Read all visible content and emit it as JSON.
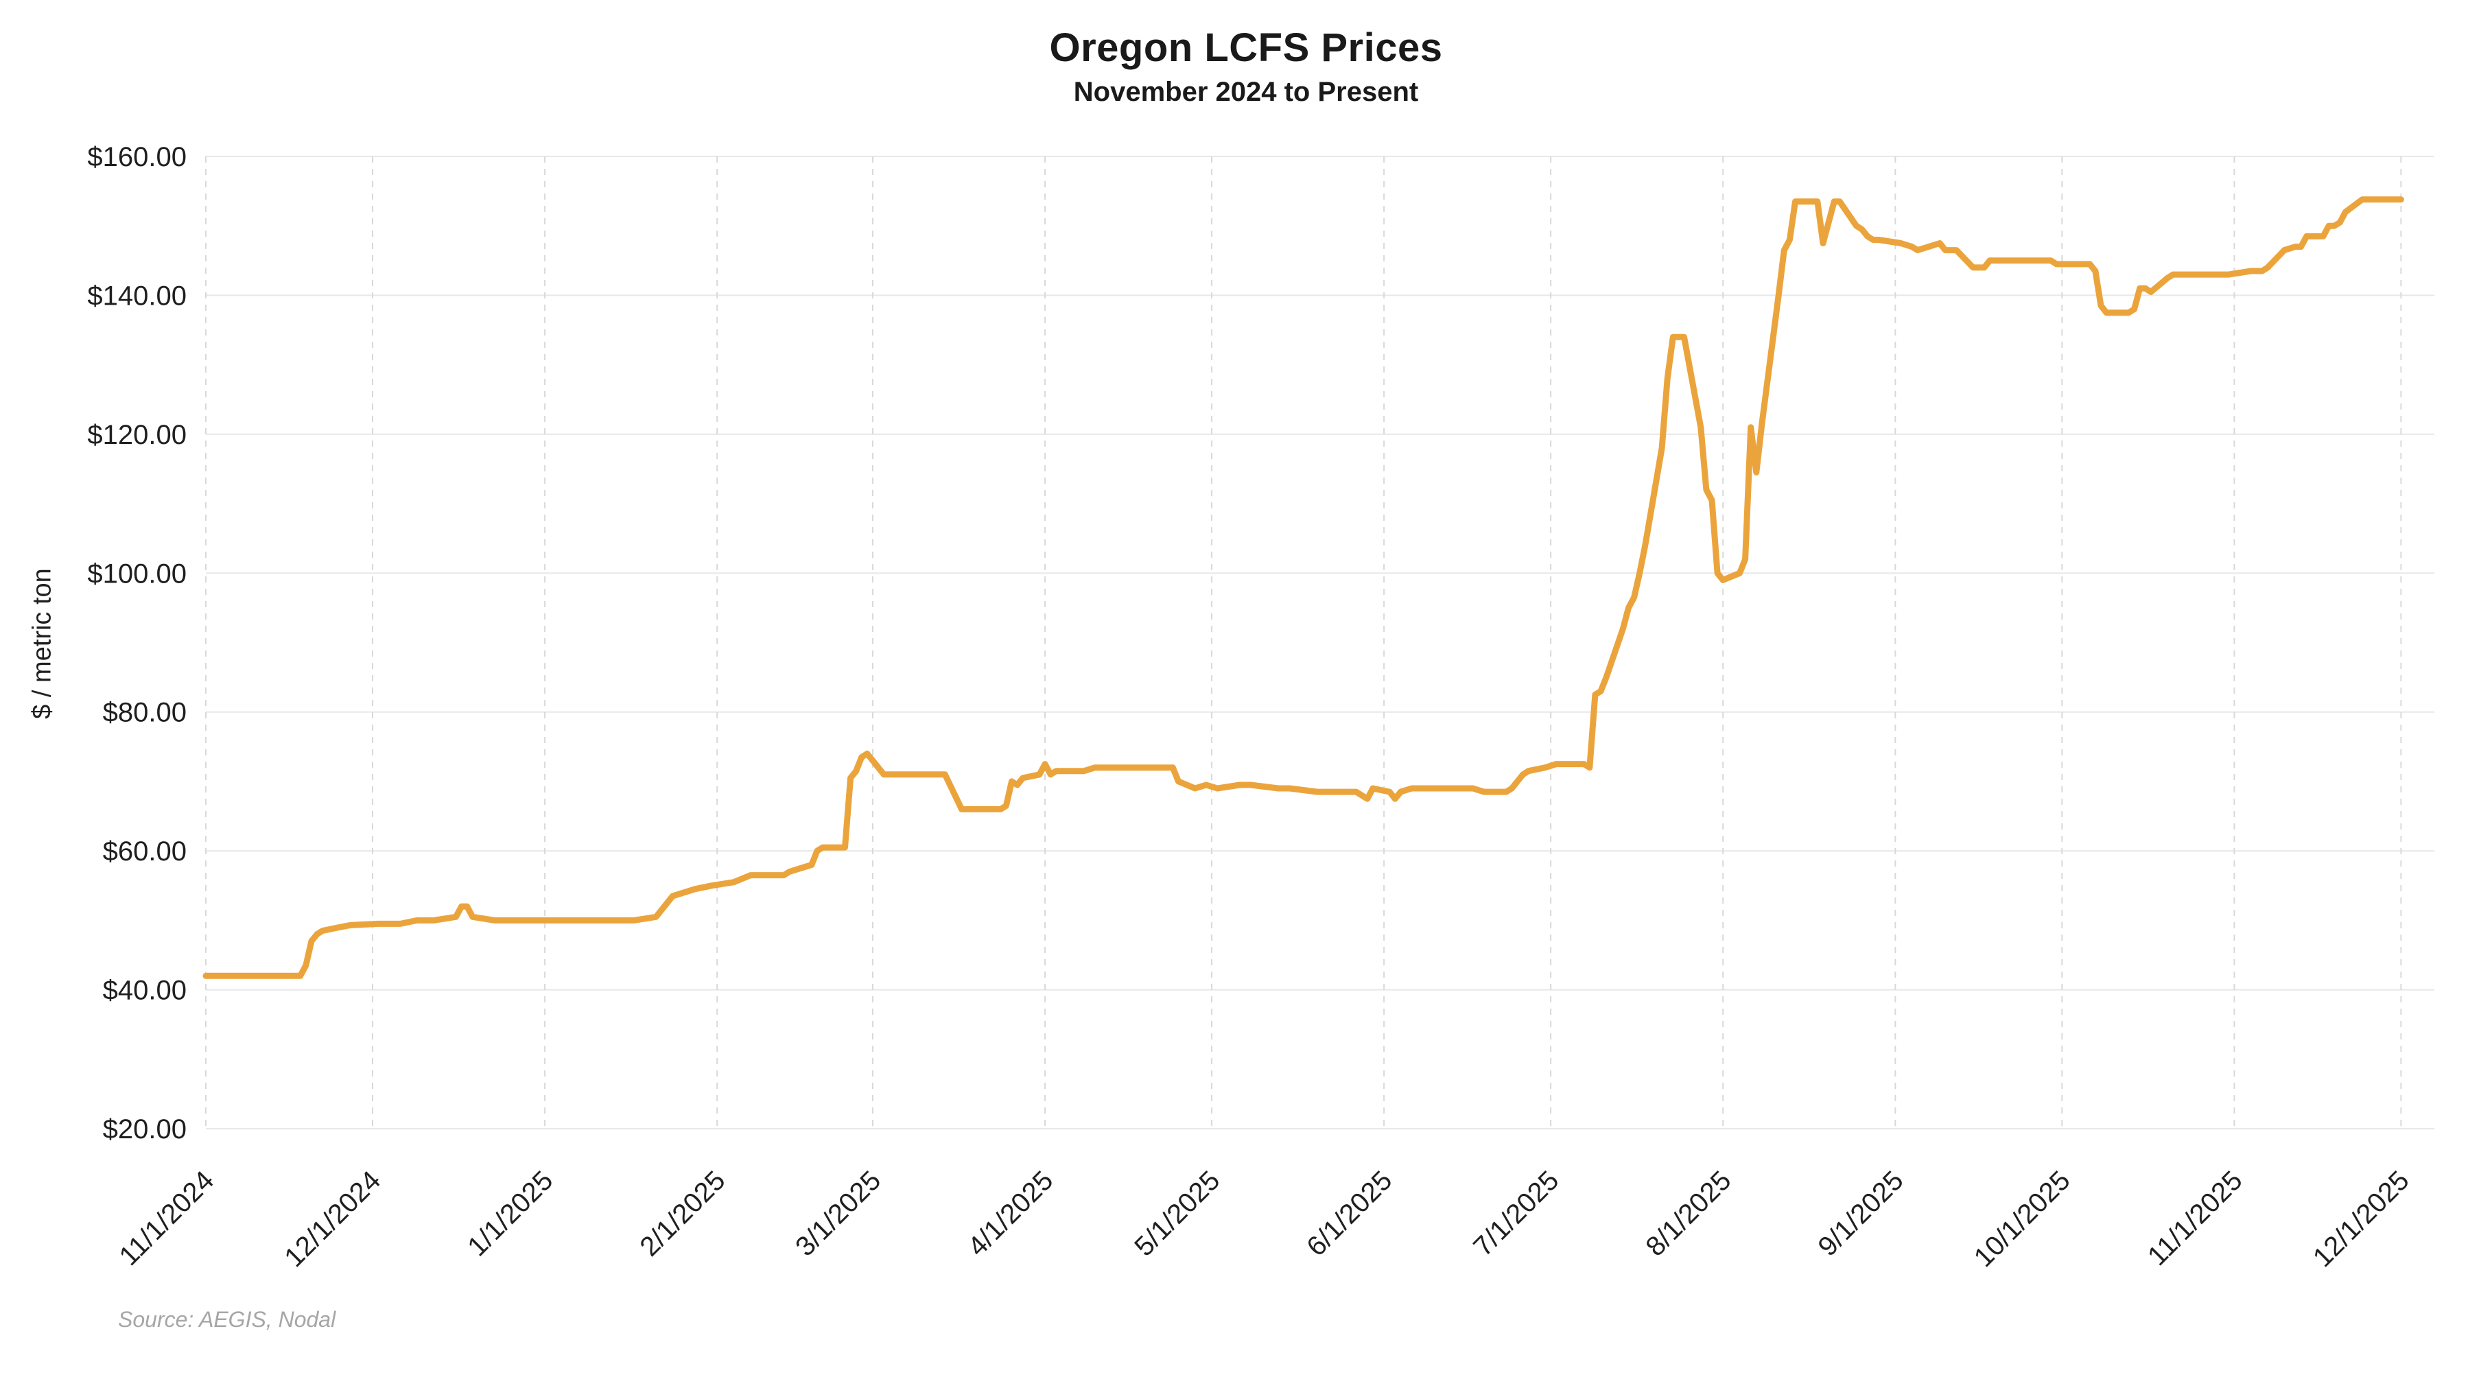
{
  "header": {
    "title": "Oregon LCFS Prices",
    "subtitle": "November 2024 to Present"
  },
  "footer": {
    "source": "Source: AEGIS, Nodal"
  },
  "chart_data": {
    "type": "line",
    "title": "Oregon LCFS Prices",
    "subtitle": "November 2024 to Present",
    "ylabel": "$ / metric ton",
    "xlabel": "",
    "ylim": [
      20,
      160
    ],
    "x_domain": [
      "2024-11-01",
      "2025-12-07"
    ],
    "grid": "on",
    "legend": "none",
    "line_color": "#EBA43C",
    "grid_h_color": "#e8e8e8",
    "grid_v_color": "#d9d9d9",
    "tick_text_color": "#1f1f1f",
    "y_ticks": [
      {
        "value": 20,
        "label": "$20.00"
      },
      {
        "value": 40,
        "label": "$40.00"
      },
      {
        "value": 60,
        "label": "$60.00"
      },
      {
        "value": 80,
        "label": "$80.00"
      },
      {
        "value": 100,
        "label": "$100.00"
      },
      {
        "value": 120,
        "label": "$120.00"
      },
      {
        "value": 140,
        "label": "$140.00"
      },
      {
        "value": 160,
        "label": "$160.00"
      }
    ],
    "x_ticks": [
      {
        "date": "2024-11-01",
        "label": "11/1/2024"
      },
      {
        "date": "2024-12-01",
        "label": "12/1/2024"
      },
      {
        "date": "2025-01-01",
        "label": "1/1/2025"
      },
      {
        "date": "2025-02-01",
        "label": "2/1/2025"
      },
      {
        "date": "2025-03-01",
        "label": "3/1/2025"
      },
      {
        "date": "2025-04-01",
        "label": "4/1/2025"
      },
      {
        "date": "2025-05-01",
        "label": "5/1/2025"
      },
      {
        "date": "2025-06-01",
        "label": "6/1/2025"
      },
      {
        "date": "2025-07-01",
        "label": "7/1/2025"
      },
      {
        "date": "2025-08-01",
        "label": "8/1/2025"
      },
      {
        "date": "2025-09-01",
        "label": "9/1/2025"
      },
      {
        "date": "2025-10-01",
        "label": "10/1/2025"
      },
      {
        "date": "2025-11-01",
        "label": "11/1/2025"
      },
      {
        "date": "2025-12-01",
        "label": "12/1/2025"
      }
    ],
    "series": [
      {
        "name": "Oregon LCFS Price ($/metric ton)",
        "points": [
          [
            "2024-11-01",
            42.0
          ],
          [
            "2024-11-08",
            42.0
          ],
          [
            "2024-11-15",
            42.0
          ],
          [
            "2024-11-18",
            42.0
          ],
          [
            "2024-11-19",
            43.5
          ],
          [
            "2024-11-20",
            47.0
          ],
          [
            "2024-11-21",
            48.0
          ],
          [
            "2024-11-22",
            48.5
          ],
          [
            "2024-11-25",
            49.0
          ],
          [
            "2024-11-27",
            49.3
          ],
          [
            "2024-12-02",
            49.5
          ],
          [
            "2024-12-06",
            49.5
          ],
          [
            "2024-12-09",
            50.0
          ],
          [
            "2024-12-12",
            50.0
          ],
          [
            "2024-12-16",
            50.5
          ],
          [
            "2024-12-17",
            52.0
          ],
          [
            "2024-12-18",
            52.0
          ],
          [
            "2024-12-19",
            50.5
          ],
          [
            "2024-12-23",
            50.0
          ],
          [
            "2024-12-30",
            50.0
          ],
          [
            "2025-01-06",
            50.0
          ],
          [
            "2025-01-10",
            50.0
          ],
          [
            "2025-01-15",
            50.0
          ],
          [
            "2025-01-17",
            50.0
          ],
          [
            "2025-01-21",
            50.5
          ],
          [
            "2025-01-23",
            52.5
          ],
          [
            "2025-01-24",
            53.5
          ],
          [
            "2025-01-28",
            54.5
          ],
          [
            "2025-01-31",
            55.0
          ],
          [
            "2025-02-04",
            55.5
          ],
          [
            "2025-02-07",
            56.5
          ],
          [
            "2025-02-11",
            56.5
          ],
          [
            "2025-02-13",
            56.5
          ],
          [
            "2025-02-14",
            57.0
          ],
          [
            "2025-02-18",
            58.0
          ],
          [
            "2025-02-19",
            60.0
          ],
          [
            "2025-02-20",
            60.5
          ],
          [
            "2025-02-21",
            60.5
          ],
          [
            "2025-02-24",
            60.5
          ],
          [
            "2025-02-25",
            70.5
          ],
          [
            "2025-02-26",
            71.5
          ],
          [
            "2025-02-27",
            73.5
          ],
          [
            "2025-02-28",
            74.0
          ],
          [
            "2025-03-03",
            71.0
          ],
          [
            "2025-03-05",
            71.0
          ],
          [
            "2025-03-07",
            71.0
          ],
          [
            "2025-03-11",
            71.0
          ],
          [
            "2025-03-13",
            71.0
          ],
          [
            "2025-03-14",
            71.0
          ],
          [
            "2025-03-17",
            66.0
          ],
          [
            "2025-03-20",
            66.0
          ],
          [
            "2025-03-24",
            66.0
          ],
          [
            "2025-03-25",
            66.5
          ],
          [
            "2025-03-26",
            70.0
          ],
          [
            "2025-03-27",
            69.5
          ],
          [
            "2025-03-28",
            70.5
          ],
          [
            "2025-03-31",
            71.0
          ],
          [
            "2025-04-01",
            72.5
          ],
          [
            "2025-04-02",
            71.0
          ],
          [
            "2025-04-03",
            71.5
          ],
          [
            "2025-04-08",
            71.5
          ],
          [
            "2025-04-10",
            72.0
          ],
          [
            "2025-04-15",
            72.0
          ],
          [
            "2025-04-17",
            72.0
          ],
          [
            "2025-04-22",
            72.0
          ],
          [
            "2025-04-24",
            72.0
          ],
          [
            "2025-04-25",
            70.0
          ],
          [
            "2025-04-28",
            69.0
          ],
          [
            "2025-04-30",
            69.5
          ],
          [
            "2025-05-02",
            69.0
          ],
          [
            "2025-05-06",
            69.5
          ],
          [
            "2025-05-08",
            69.5
          ],
          [
            "2025-05-13",
            69.0
          ],
          [
            "2025-05-15",
            69.0
          ],
          [
            "2025-05-20",
            68.5
          ],
          [
            "2025-05-23",
            68.5
          ],
          [
            "2025-05-27",
            68.5
          ],
          [
            "2025-05-28",
            68.0
          ],
          [
            "2025-05-29",
            67.5
          ],
          [
            "2025-05-30",
            69.0
          ],
          [
            "2025-06-02",
            68.5
          ],
          [
            "2025-06-03",
            67.5
          ],
          [
            "2025-06-04",
            68.5
          ],
          [
            "2025-06-06",
            69.0
          ],
          [
            "2025-06-10",
            69.0
          ],
          [
            "2025-06-13",
            69.0
          ],
          [
            "2025-06-17",
            69.0
          ],
          [
            "2025-06-19",
            68.5
          ],
          [
            "2025-06-23",
            68.5
          ],
          [
            "2025-06-24",
            69.0
          ],
          [
            "2025-06-26",
            71.0
          ],
          [
            "2025-06-27",
            71.5
          ],
          [
            "2025-06-30",
            72.0
          ],
          [
            "2025-07-02",
            72.5
          ],
          [
            "2025-07-07",
            72.5
          ],
          [
            "2025-07-08",
            72.0
          ],
          [
            "2025-07-09",
            82.5
          ],
          [
            "2025-07-10",
            83.0
          ],
          [
            "2025-07-11",
            85.0
          ],
          [
            "2025-07-14",
            92.0
          ],
          [
            "2025-07-15",
            95.0
          ],
          [
            "2025-07-16",
            96.5
          ],
          [
            "2025-07-17",
            100.0
          ],
          [
            "2025-07-18",
            104.0
          ],
          [
            "2025-07-21",
            118.0
          ],
          [
            "2025-07-22",
            128.0
          ],
          [
            "2025-07-23",
            134.0
          ],
          [
            "2025-07-25",
            134.0
          ],
          [
            "2025-07-28",
            121.0
          ],
          [
            "2025-07-29",
            112.0
          ],
          [
            "2025-07-30",
            110.5
          ],
          [
            "2025-07-31",
            100.0
          ],
          [
            "2025-08-01",
            99.0
          ],
          [
            "2025-08-04",
            100.0
          ],
          [
            "2025-08-05",
            102.0
          ],
          [
            "2025-08-06",
            121.0
          ],
          [
            "2025-08-07",
            114.5
          ],
          [
            "2025-08-08",
            121.5
          ],
          [
            "2025-08-11",
            140.0
          ],
          [
            "2025-08-12",
            146.5
          ],
          [
            "2025-08-13",
            148.0
          ],
          [
            "2025-08-14",
            153.5
          ],
          [
            "2025-08-15",
            153.5
          ],
          [
            "2025-08-18",
            153.5
          ],
          [
            "2025-08-19",
            147.5
          ],
          [
            "2025-08-20",
            150.5
          ],
          [
            "2025-08-21",
            153.5
          ],
          [
            "2025-08-22",
            153.5
          ],
          [
            "2025-08-25",
            150.0
          ],
          [
            "2025-08-26",
            149.5
          ],
          [
            "2025-08-27",
            148.5
          ],
          [
            "2025-08-28",
            148.0
          ],
          [
            "2025-08-29",
            148.0
          ],
          [
            "2025-09-02",
            147.5
          ],
          [
            "2025-09-04",
            147.0
          ],
          [
            "2025-09-05",
            146.5
          ],
          [
            "2025-09-09",
            147.5
          ],
          [
            "2025-09-10",
            146.5
          ],
          [
            "2025-09-12",
            146.5
          ],
          [
            "2025-09-15",
            144.0
          ],
          [
            "2025-09-17",
            144.0
          ],
          [
            "2025-09-18",
            145.0
          ],
          [
            "2025-09-22",
            145.0
          ],
          [
            "2025-09-25",
            145.0
          ],
          [
            "2025-09-29",
            145.0
          ],
          [
            "2025-09-30",
            144.5
          ],
          [
            "2025-10-02",
            144.5
          ],
          [
            "2025-10-06",
            144.5
          ],
          [
            "2025-10-07",
            143.5
          ],
          [
            "2025-10-08",
            138.5
          ],
          [
            "2025-10-09",
            137.5
          ],
          [
            "2025-10-13",
            137.5
          ],
          [
            "2025-10-14",
            138.0
          ],
          [
            "2025-10-15",
            141.0
          ],
          [
            "2025-10-16",
            141.0
          ],
          [
            "2025-10-17",
            140.5
          ],
          [
            "2025-10-20",
            142.5
          ],
          [
            "2025-10-21",
            143.0
          ],
          [
            "2025-10-24",
            143.0
          ],
          [
            "2025-10-28",
            143.0
          ],
          [
            "2025-10-31",
            143.0
          ],
          [
            "2025-11-04",
            143.5
          ],
          [
            "2025-11-06",
            143.5
          ],
          [
            "2025-11-07",
            144.0
          ],
          [
            "2025-11-10",
            146.5
          ],
          [
            "2025-11-12",
            147.0
          ],
          [
            "2025-11-13",
            147.0
          ],
          [
            "2025-11-14",
            148.5
          ],
          [
            "2025-11-17",
            148.5
          ],
          [
            "2025-11-18",
            150.0
          ],
          [
            "2025-11-19",
            150.0
          ],
          [
            "2025-11-20",
            150.5
          ],
          [
            "2025-11-21",
            152.0
          ],
          [
            "2025-11-24",
            153.8
          ],
          [
            "2025-11-26",
            153.8
          ],
          [
            "2025-11-28",
            153.8
          ],
          [
            "2025-12-01",
            153.8
          ]
        ]
      }
    ]
  }
}
